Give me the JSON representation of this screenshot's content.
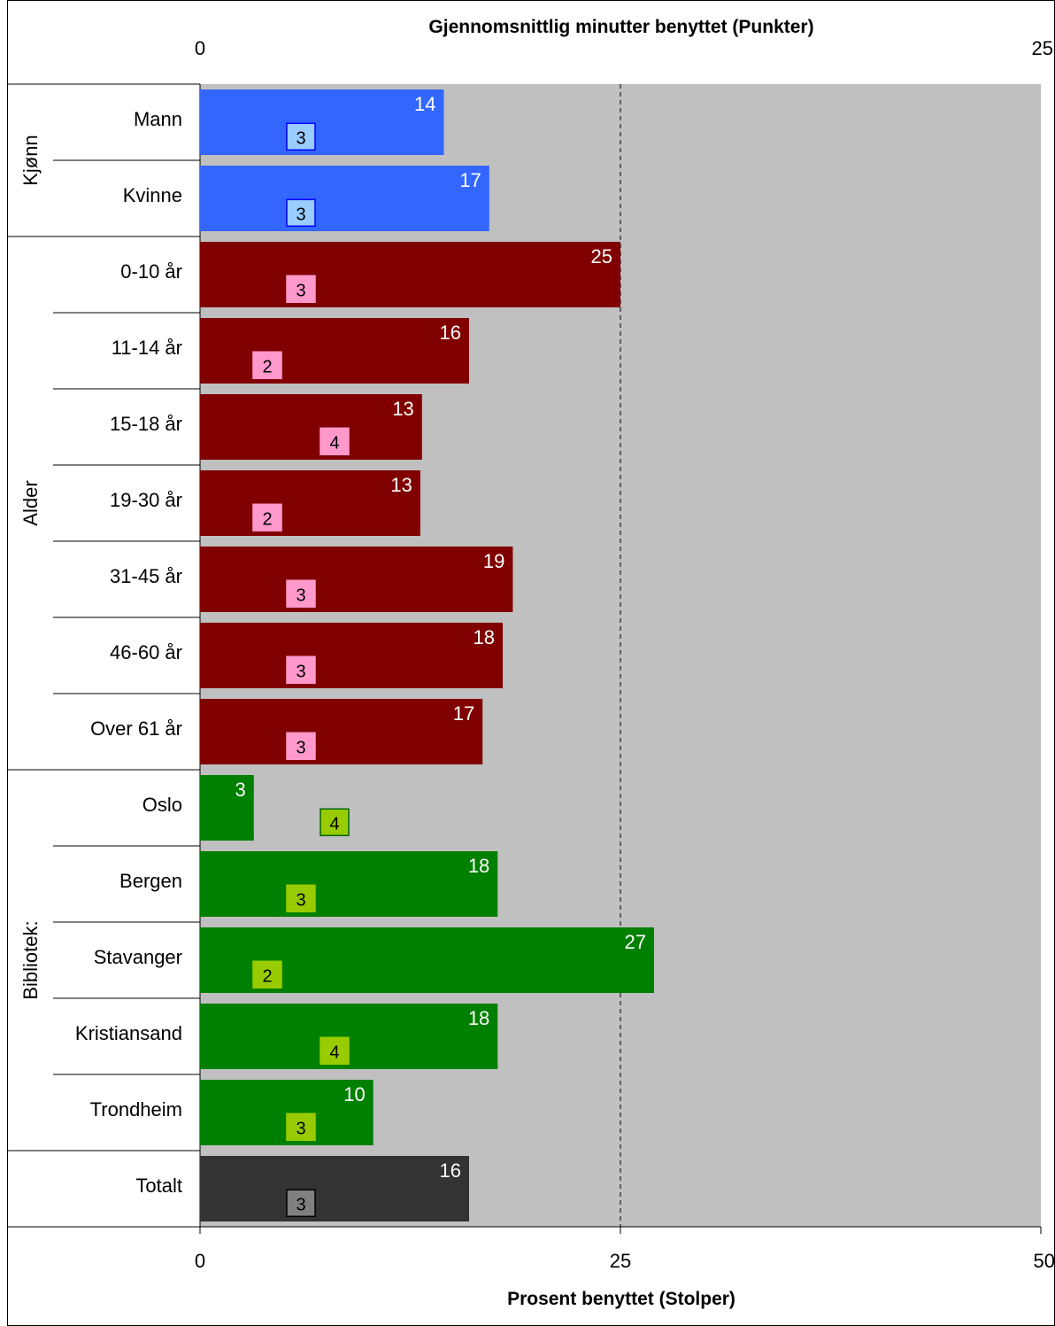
{
  "chart_data": {
    "type": "bar",
    "orientation": "horizontal",
    "x_top_label": "Gjennomsnittlig minutter benyttet (Punkter)",
    "x_bottom_label": "Prosent benyttet (Stolper)",
    "x_bottom_range": [
      0,
      50
    ],
    "x_bottom_ticks": [
      "0",
      "25",
      "50"
    ],
    "x_top_range": [
      0,
      25
    ],
    "x_top_ticks": [
      "0",
      "25"
    ],
    "reference_line_x": 25,
    "groups": [
      {
        "name": "Kjønn",
        "start": 0,
        "count": 2
      },
      {
        "name": "Alder",
        "start": 2,
        "count": 7
      },
      {
        "name": "Bibliotek:",
        "start": 9,
        "count": 5
      },
      {
        "name": "",
        "start": 14,
        "count": 1
      }
    ],
    "categories": [
      "Mann",
      "Kvinne",
      "0-10 år",
      "11-14 år",
      "15-18 år",
      "19-30 år",
      "31-45 år",
      "46-60 år",
      "Over 61 år",
      "Oslo",
      "Bergen",
      "Stavanger",
      "Kristiansand",
      "Trondheim",
      "Totalt"
    ],
    "bar_values": [
      14.5,
      17.2,
      25.0,
      16.0,
      13.2,
      13.1,
      18.6,
      18.0,
      16.8,
      3.2,
      17.7,
      27.0,
      17.7,
      10.3,
      16.0
    ],
    "bar_labels": [
      "14",
      "17",
      "25",
      "16",
      "13",
      "13",
      "19",
      "18",
      "17",
      "3",
      "18",
      "27",
      "18",
      "10",
      "16"
    ],
    "point_values": [
      3.0,
      3.0,
      3.0,
      2.0,
      4.0,
      2.0,
      3.0,
      3.0,
      3.0,
      4.0,
      3.0,
      2.0,
      4.0,
      3.0,
      3.0
    ],
    "point_labels": [
      "3",
      "3",
      "3",
      "2",
      "4",
      "2",
      "3",
      "3",
      "3",
      "4",
      "3",
      "2",
      "4",
      "3",
      "3"
    ],
    "bar_colors": [
      "#3366ff",
      "#3366ff",
      "#800000",
      "#800000",
      "#800000",
      "#800000",
      "#800000",
      "#800000",
      "#800000",
      "#008000",
      "#008000",
      "#008000",
      "#008000",
      "#008000",
      "#333333"
    ],
    "point_colors": [
      "#99ccff",
      "#99ccff",
      "#ff99cc",
      "#ff99cc",
      "#ff99cc",
      "#ff99cc",
      "#ff99cc",
      "#ff99cc",
      "#ff99cc",
      "#99cc00",
      "#99cc00",
      "#99cc00",
      "#99cc00",
      "#99cc00",
      "#808080"
    ],
    "point_border_colors": [
      "#0000ff",
      "#0000ff",
      "#ff99cc",
      "#ff99cc",
      "#ff99cc",
      "#ff99cc",
      "#ff99cc",
      "#ff99cc",
      "#ff99cc",
      "#006600",
      "#99cc00",
      "#99cc00",
      "#99cc00",
      "#99cc00",
      "#000000"
    ],
    "plot_background": "#c0c0c0",
    "grid": false
  }
}
